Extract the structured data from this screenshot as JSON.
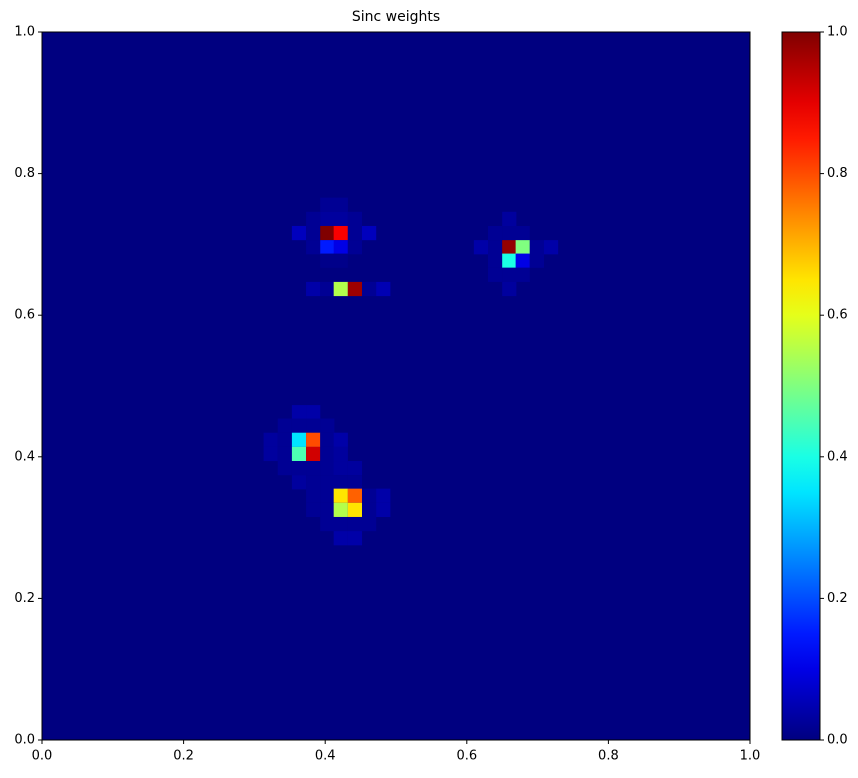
{
  "chart_data": {
    "type": "heatmap",
    "title": "Sinc weights",
    "colormap": "jet",
    "x": [
      0.403,
      0.422,
      0.383,
      0.403,
      0.422,
      0.442,
      0.363,
      0.383,
      0.403,
      0.422,
      0.442,
      0.462,
      0.383,
      0.403,
      0.422,
      0.442,
      0.403,
      0.422,
      0.383,
      0.403,
      0.422,
      0.442,
      0.462,
      0.482,
      0.66,
      0.64,
      0.66,
      0.679,
      0.62,
      0.64,
      0.66,
      0.679,
      0.699,
      0.719,
      0.64,
      0.66,
      0.679,
      0.699,
      0.64,
      0.66,
      0.679,
      0.66,
      0.363,
      0.383,
      0.343,
      0.363,
      0.383,
      0.403,
      0.323,
      0.343,
      0.363,
      0.383,
      0.403,
      0.422,
      0.323,
      0.343,
      0.363,
      0.383,
      0.403,
      0.422,
      0.343,
      0.363,
      0.383,
      0.403,
      0.422,
      0.442,
      0.363,
      0.383,
      0.403,
      0.422,
      0.442,
      0.383,
      0.403,
      0.422,
      0.442,
      0.462,
      0.482,
      0.383,
      0.403,
      0.422,
      0.442,
      0.462,
      0.482,
      0.403,
      0.422,
      0.442,
      0.462,
      0.422,
      0.442
    ],
    "y": [
      0.756,
      0.756,
      0.736,
      0.736,
      0.736,
      0.736,
      0.716,
      0.716,
      0.716,
      0.716,
      0.716,
      0.716,
      0.696,
      0.696,
      0.696,
      0.696,
      0.677,
      0.677,
      0.637,
      0.637,
      0.637,
      0.637,
      0.637,
      0.637,
      0.736,
      0.716,
      0.716,
      0.716,
      0.696,
      0.696,
      0.696,
      0.696,
      0.696,
      0.696,
      0.677,
      0.677,
      0.677,
      0.677,
      0.657,
      0.657,
      0.657,
      0.637,
      0.463,
      0.463,
      0.444,
      0.444,
      0.444,
      0.444,
      0.424,
      0.424,
      0.424,
      0.424,
      0.424,
      0.424,
      0.404,
      0.404,
      0.404,
      0.404,
      0.404,
      0.404,
      0.384,
      0.384,
      0.384,
      0.384,
      0.384,
      0.384,
      0.364,
      0.364,
      0.364,
      0.364,
      0.364,
      0.345,
      0.345,
      0.345,
      0.345,
      0.345,
      0.345,
      0.325,
      0.325,
      0.325,
      0.325,
      0.325,
      0.325,
      0.305,
      0.305,
      0.305,
      0.305,
      0.285,
      0.285
    ],
    "values": [
      0.02,
      0.02,
      0.02,
      0.03,
      0.03,
      0.02,
      0.06,
      0.02,
      1,
      0.88,
      0.02,
      0.06,
      0.02,
      0.15,
      0.1,
      0.02,
      0.01,
      0.01,
      0.04,
      0.02,
      0.55,
      0.97,
      0.02,
      0.05,
      0.03,
      0.02,
      0.02,
      0.02,
      0.04,
      0.02,
      0.98,
      0.5,
      0.02,
      0.04,
      0.02,
      0.4,
      0.1,
      0.02,
      0.02,
      0.02,
      0.02,
      0.03,
      0.04,
      0.04,
      0.02,
      0.02,
      0.02,
      0.02,
      0.03,
      0.02,
      0.35,
      0.8,
      0.02,
      0.04,
      0.03,
      0.02,
      0.45,
      0.92,
      0.02,
      0.03,
      0.02,
      0.02,
      0.02,
      0.02,
      0.03,
      0.03,
      0.03,
      0.02,
      0.02,
      0.02,
      0.02,
      0.02,
      0.02,
      0.65,
      0.78,
      0.02,
      0.04,
      0.02,
      0.02,
      0.55,
      0.65,
      0.02,
      0.04,
      0.02,
      0.02,
      0.02,
      0.02,
      0.04,
      0.04
    ],
    "xlim": [
      0,
      1
    ],
    "ylim": [
      0,
      1
    ],
    "clim": [
      0,
      1
    ],
    "xticks": [
      {
        "value": 0,
        "label": "0.0"
      },
      {
        "value": 0.2,
        "label": "0.2"
      },
      {
        "value": 0.4,
        "label": "0.4"
      },
      {
        "value": 0.6,
        "label": "0.6"
      },
      {
        "value": 0.8,
        "label": "0.8"
      },
      {
        "value": 1,
        "label": "1.0"
      }
    ],
    "yticks": [
      {
        "value": 0,
        "label": "0.0"
      },
      {
        "value": 0.2,
        "label": "0.2"
      },
      {
        "value": 0.4,
        "label": "0.4"
      },
      {
        "value": 0.6,
        "label": "0.6"
      },
      {
        "value": 0.8,
        "label": "0.8"
      },
      {
        "value": 1,
        "label": "1.0"
      }
    ],
    "colorbar_ticks": [
      {
        "value": 0,
        "label": "0.0"
      },
      {
        "value": 0.2,
        "label": "0.2"
      },
      {
        "value": 0.4,
        "label": "0.4"
      },
      {
        "value": 0.6,
        "label": "0.6"
      },
      {
        "value": 0.8,
        "label": "0.8"
      },
      {
        "value": 1,
        "label": "1.0"
      }
    ]
  }
}
